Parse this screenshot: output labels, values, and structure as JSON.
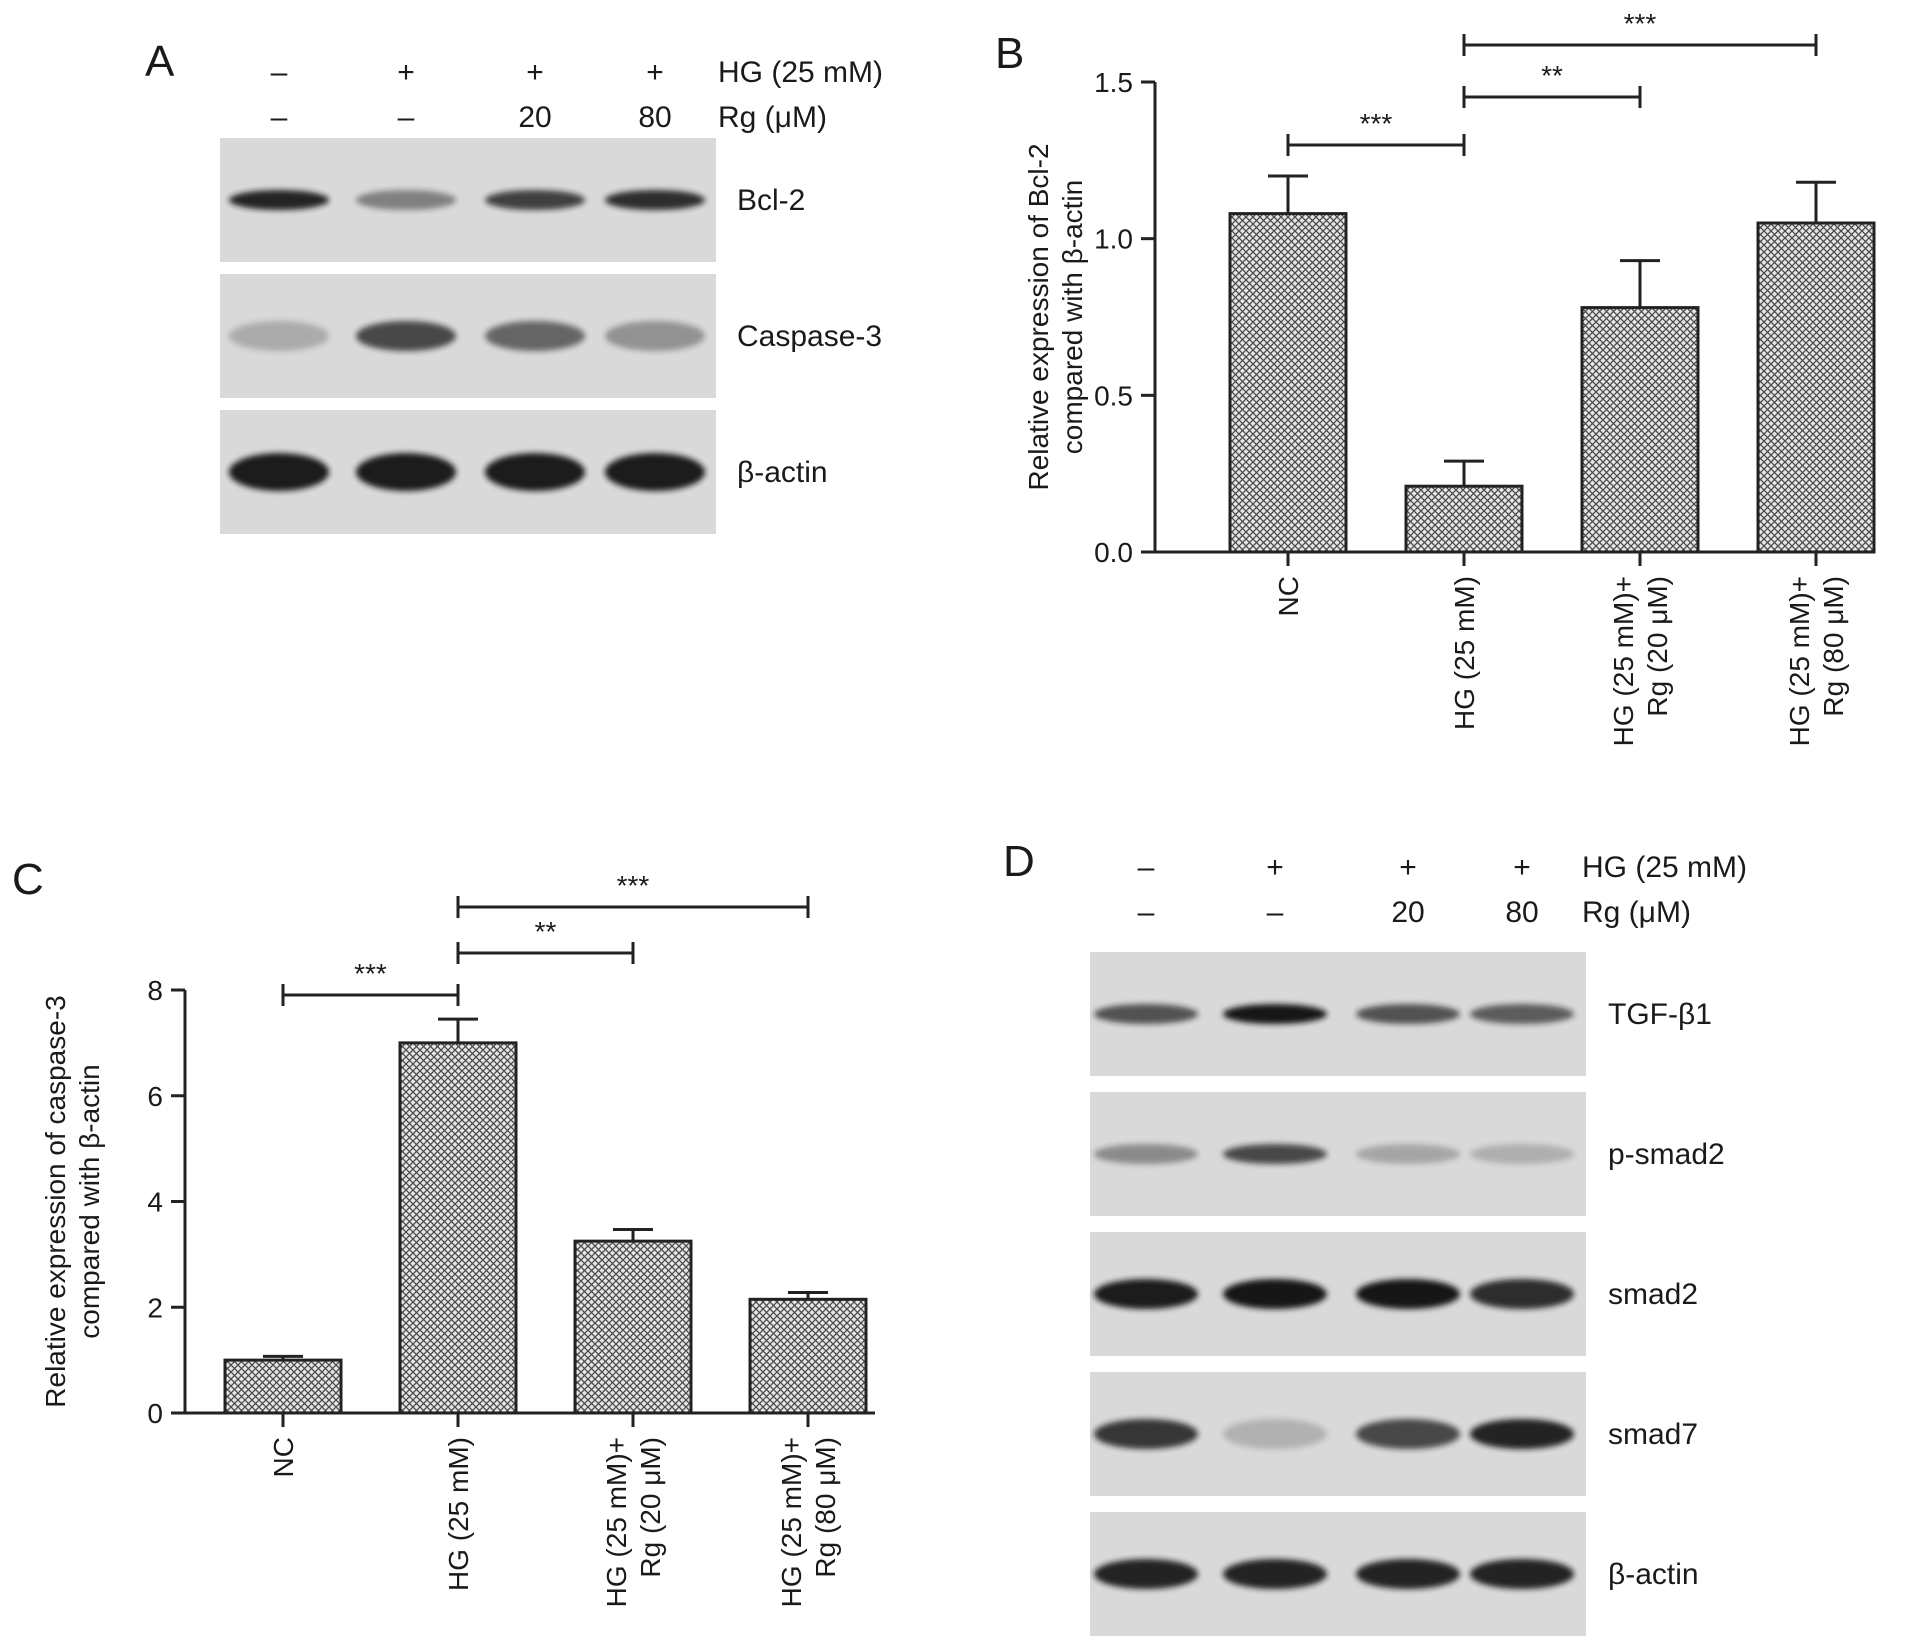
{
  "panels": {
    "A": {
      "letter": "A",
      "treatment_rows": [
        {
          "label": "HG (25 mM)",
          "lanes": [
            "–",
            "+",
            "+",
            "+"
          ]
        },
        {
          "label": "Rg (μM)",
          "lanes": [
            "–",
            "–",
            "20",
            "80"
          ]
        }
      ],
      "blots": [
        {
          "label": "Bcl-2",
          "intensities": [
            0.85,
            0.35,
            0.7,
            0.8
          ],
          "shape": "thin"
        },
        {
          "label": "Caspase-3",
          "intensities": [
            0.12,
            0.65,
            0.5,
            0.25
          ],
          "shape": "medium"
        },
        {
          "label": "β-actin",
          "intensities": [
            0.9,
            0.9,
            0.9,
            0.9
          ],
          "shape": "thick"
        }
      ]
    },
    "D": {
      "letter": "D",
      "treatment_rows": [
        {
          "label": "HG (25 mM)",
          "lanes": [
            "–",
            "+",
            "+",
            "+"
          ]
        },
        {
          "label": "Rg (μM)",
          "lanes": [
            "–",
            "–",
            "20",
            "80"
          ]
        }
      ],
      "blots": [
        {
          "label": "TGF-β1",
          "intensities": [
            0.6,
            1.0,
            0.6,
            0.55
          ],
          "shape": "thin"
        },
        {
          "label": "p-smad2",
          "intensities": [
            0.3,
            0.65,
            0.15,
            0.1
          ],
          "shape": "thin"
        },
        {
          "label": "smad2",
          "intensities": [
            0.9,
            1.0,
            0.95,
            0.8
          ],
          "shape": "medium"
        },
        {
          "label": "smad7",
          "intensities": [
            0.75,
            0.08,
            0.65,
            0.85
          ],
          "shape": "medium"
        },
        {
          "label": "β-actin",
          "intensities": [
            0.85,
            0.85,
            0.85,
            0.85
          ],
          "shape": "medium"
        }
      ]
    }
  },
  "chart_data": [
    {
      "panel": "B",
      "type": "bar",
      "title": "",
      "xlabel": "",
      "ylabel": "Relative expression of Bcl-2 compared with β-actin",
      "ylabel_lines": [
        "Relative expression of Bcl-2",
        "compared with β-actin"
      ],
      "categories": [
        "NC",
        "HG (25 mM)",
        "HG (25 mM)+ Rg (20 μM)",
        "HG (25 mM)+ Rg (80 μM)"
      ],
      "category_lines": [
        [
          "NC"
        ],
        [
          "HG (25 mM)"
        ],
        [
          "HG (25 mM)+",
          "Rg (20 μM)"
        ],
        [
          "HG (25 mM)+",
          "Rg (80 μM)"
        ]
      ],
      "values": [
        1.08,
        0.21,
        0.78,
        1.05
      ],
      "errors": [
        0.12,
        0.08,
        0.15,
        0.13
      ],
      "ylim": [
        0,
        1.5
      ],
      "yticks": [
        "0.0",
        "0.5",
        "1.0",
        "1.5"
      ],
      "significance": [
        {
          "from": 0,
          "to": 1,
          "label": "***"
        },
        {
          "from": 1,
          "to": 2,
          "label": "**"
        },
        {
          "from": 1,
          "to": 3,
          "label": "***"
        }
      ],
      "grid": false,
      "bar_pattern": "crosshatch",
      "bar_color": "#7a7a7a"
    },
    {
      "panel": "C",
      "type": "bar",
      "title": "",
      "xlabel": "",
      "ylabel": "Relative expression of caspase-3 compared with β-actin",
      "ylabel_lines": [
        "Relative expression of caspase-3",
        "compared with β-actin"
      ],
      "categories": [
        "NC",
        "HG (25 mM)",
        "HG (25 mM)+ Rg (20 μM)",
        "HG (25 mM)+ Rg (80 μM)"
      ],
      "category_lines": [
        [
          "NC"
        ],
        [
          "HG (25 mM)"
        ],
        [
          "HG (25 mM)+",
          "Rg (20 μM)"
        ],
        [
          "HG (25 mM)+",
          "Rg (80 μM)"
        ]
      ],
      "values": [
        1.0,
        7.0,
        3.25,
        2.15
      ],
      "errors": [
        0.07,
        0.45,
        0.22,
        0.13
      ],
      "ylim": [
        0,
        8
      ],
      "yticks": [
        "0",
        "2",
        "4",
        "6",
        "8"
      ],
      "significance": [
        {
          "from": 0,
          "to": 1,
          "label": "***"
        },
        {
          "from": 1,
          "to": 2,
          "label": "**"
        },
        {
          "from": 1,
          "to": 3,
          "label": "***"
        }
      ],
      "grid": false,
      "bar_pattern": "crosshatch",
      "bar_color": "#7a7a7a"
    }
  ]
}
